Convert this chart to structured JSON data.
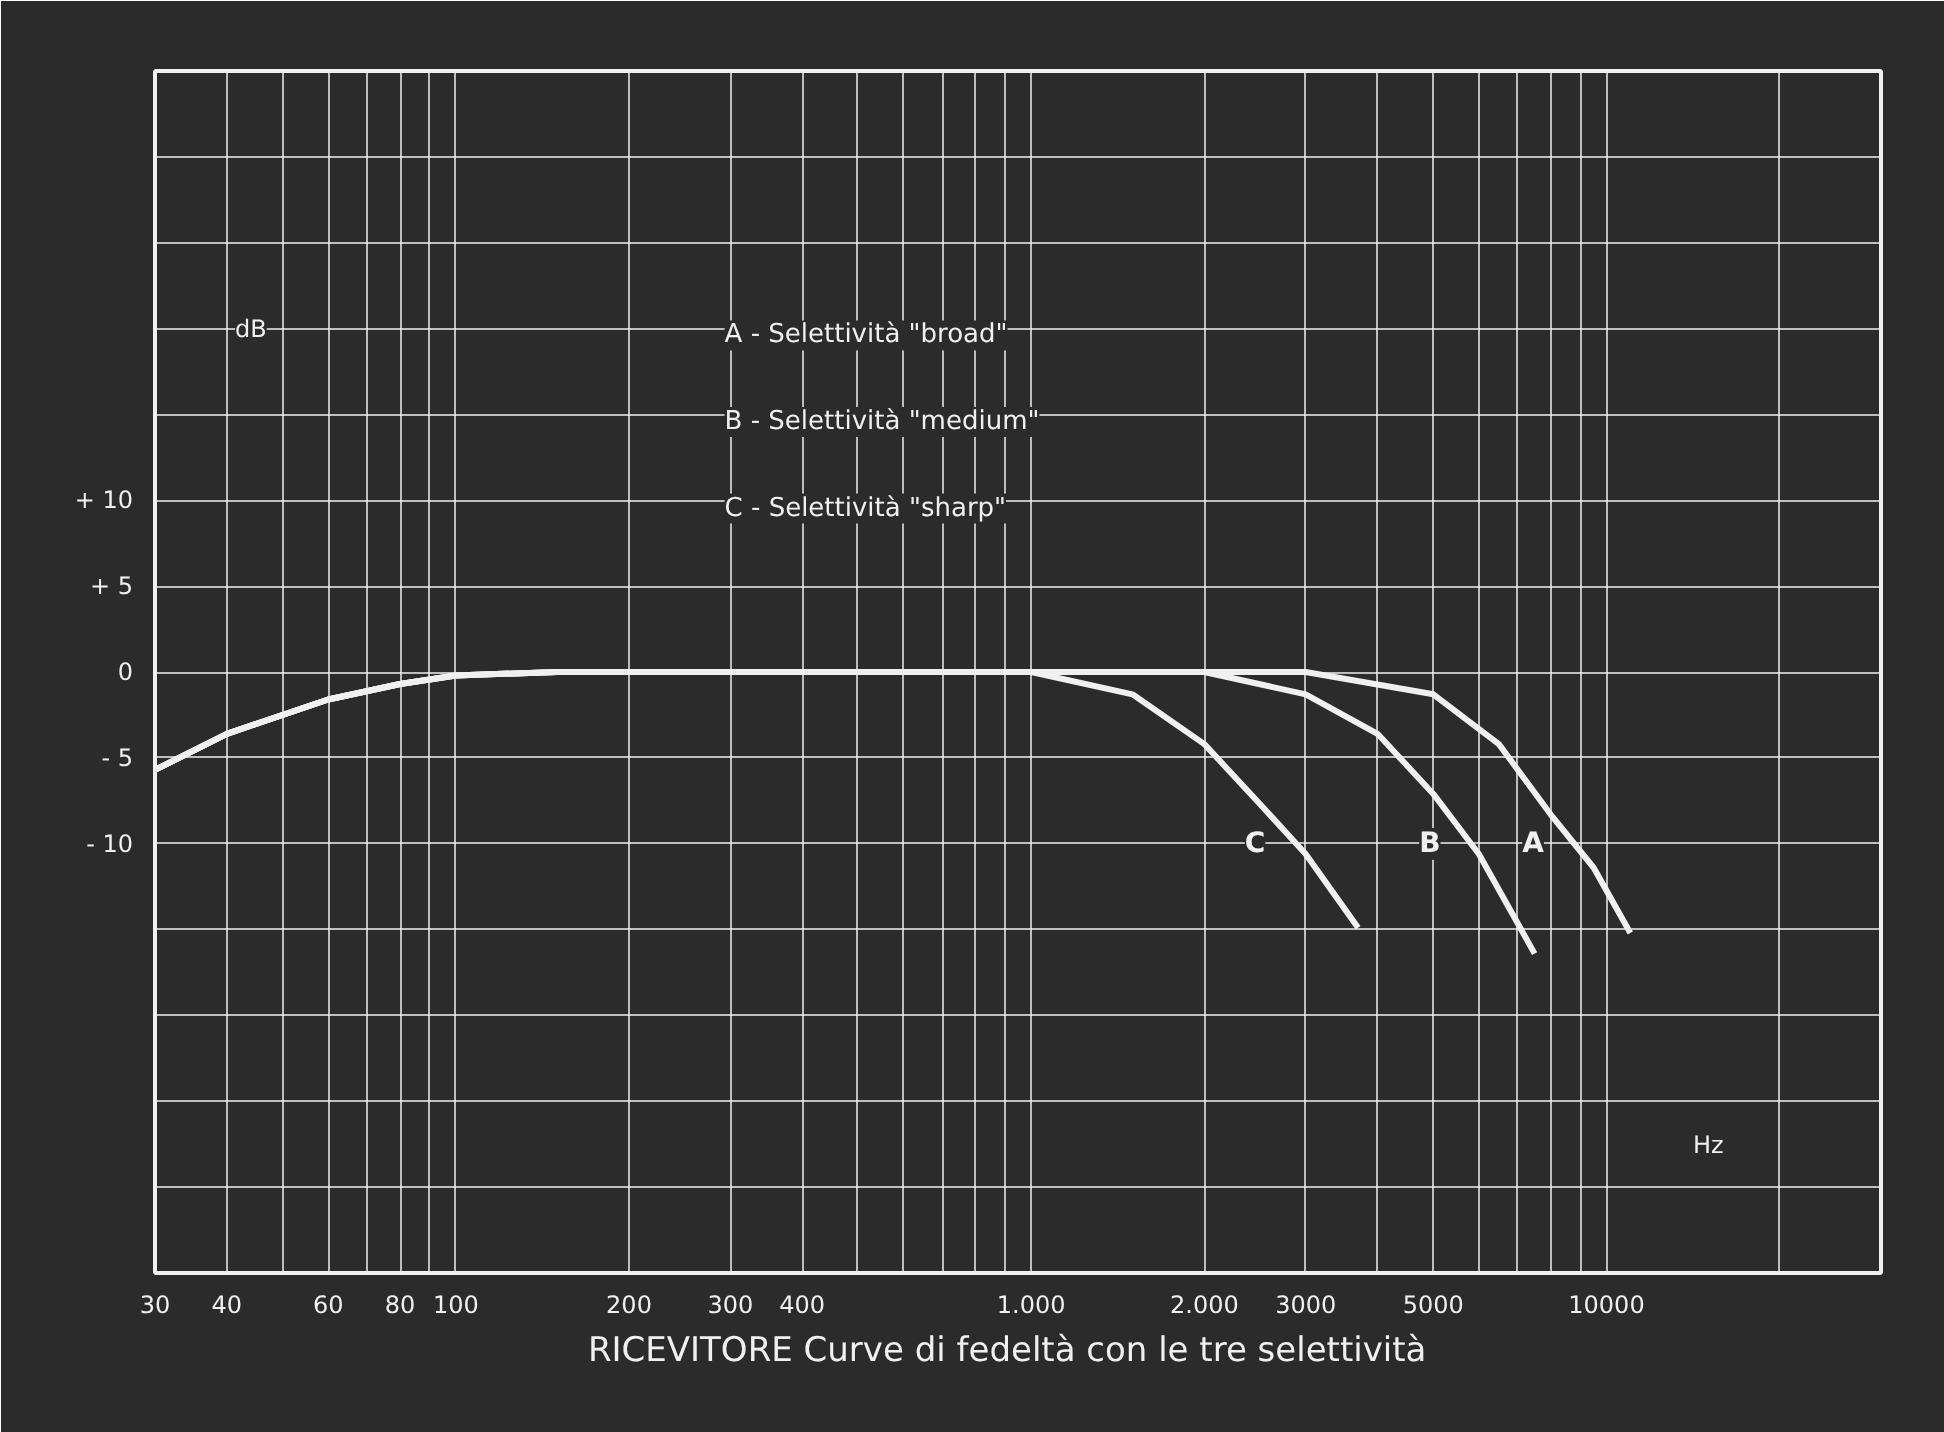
{
  "chart_data": {
    "type": "line",
    "title": "RICEVITORE",
    "subtitle": "Curve di fedeltà con le tre selettività",
    "xlabel": "Hz",
    "ylabel": "dB",
    "log": "x",
    "grid": true,
    "marker": "none",
    "line_style": "solid",
    "annotations": [
      "A - Selettività \"broad\"",
      "B - Selettività \"medium\"",
      "C - Selettività \"sharp\""
    ],
    "xlim": [
      30,
      30000
    ],
    "ylim": [
      -35,
      35
    ],
    "xticks": [
      30,
      40,
      {
        "value": 50,
        "label": null
      },
      60,
      {
        "value": 70,
        "label": null
      },
      80,
      {
        "value": 90,
        "label": null
      },
      100,
      200,
      300,
      400,
      {
        "value": 500,
        "label": null
      },
      {
        "value": 600,
        "label": null
      },
      {
        "value": 700,
        "label": null
      },
      {
        "value": 800,
        "label": null
      },
      {
        "value": 900,
        "label": null
      },
      {
        "value": 1000,
        "label": "1.000"
      },
      {
        "value": 2000,
        "label": "2.000"
      },
      3000,
      {
        "value": 4000,
        "label": null
      },
      5000,
      {
        "value": 6000,
        "label": null
      },
      {
        "value": 7000,
        "label": null
      },
      {
        "value": 8000,
        "label": null
      },
      {
        "value": 9000,
        "label": null
      },
      10000,
      {
        "value": 20000,
        "label": null
      }
    ],
    "yticks": [
      {
        "value": -35,
        "label": null
      },
      {
        "value": -30,
        "label": null
      },
      {
        "value": -25,
        "label": null
      },
      {
        "value": -20,
        "label": null
      },
      {
        "value": -15,
        "label": null
      },
      {
        "value": -10,
        "label": "- 10"
      },
      {
        "value": -5,
        "label": "- 5"
      },
      0,
      {
        "value": 5,
        "label": "+ 5"
      },
      {
        "value": 10,
        "label": "+ 10"
      },
      {
        "value": 15,
        "label": null
      },
      {
        "value": 20,
        "label": null
      },
      {
        "value": 25,
        "label": null
      },
      {
        "value": 30,
        "label": null
      }
    ],
    "series": [
      {
        "name": "C",
        "color": "#f0f0f0",
        "x": [
          30,
          40,
          60,
          80,
          100,
          150,
          1000,
          1500,
          2000,
          2500,
          3000,
          3700
        ],
        "values": [
          -5.7,
          -3.6,
          -1.6,
          -0.7,
          -0.2,
          0,
          0,
          -1.3,
          -4.2,
          -7.7,
          -10.6,
          -14.9
        ]
      },
      {
        "name": "B",
        "color": "#f0f0f0",
        "x": [
          30,
          40,
          60,
          80,
          100,
          150,
          2000,
          3000,
          4000,
          5000,
          6000,
          7500
        ],
        "values": [
          -5.7,
          -3.6,
          -1.6,
          -0.7,
          -0.2,
          0,
          0,
          -1.3,
          -3.6,
          -7.1,
          -10.6,
          -16.4
        ]
      },
      {
        "name": "A",
        "color": "#f0f0f0",
        "x": [
          30,
          40,
          60,
          80,
          100,
          150,
          3000,
          5000,
          6500,
          8000,
          9500,
          11000
        ],
        "values": [
          -5.7,
          -3.6,
          -1.6,
          -0.7,
          -0.2,
          0,
          0,
          -1.3,
          -4.2,
          -8.3,
          -11.4,
          -15.2
        ]
      }
    ]
  }
}
